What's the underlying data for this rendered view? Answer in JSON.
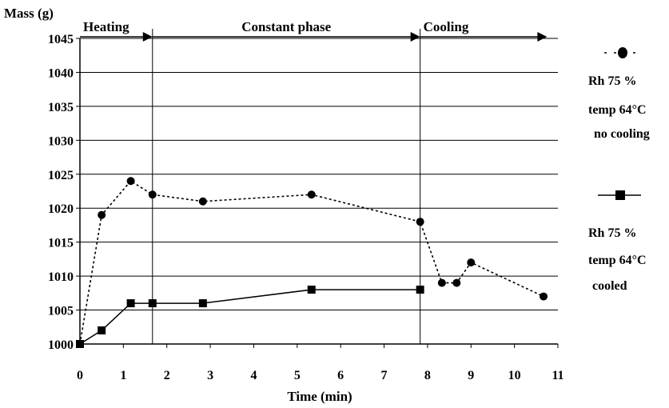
{
  "chart_data": {
    "type": "line",
    "title": "",
    "xlabel": "Time (min)",
    "ylabel": "Mass (g)",
    "xlim": [
      0,
      11
    ],
    "ylim": [
      1000,
      1045
    ],
    "xticks": [
      "0",
      "1",
      "2",
      "3",
      "4",
      "5",
      "6",
      "7",
      "8",
      "9",
      "10",
      "11"
    ],
    "yticks": [
      "1000",
      "1005",
      "1010",
      "1015",
      "1020",
      "1025",
      "1030",
      "1035",
      "1040",
      "1045"
    ],
    "grid": "horizontal",
    "phases": [
      {
        "label": "Heating",
        "start": 0,
        "end": 1.67
      },
      {
        "label": "Constant phase",
        "start": 1.67,
        "end": 7.83
      },
      {
        "label": "Cooling",
        "start": 7.83,
        "end": 10.75
      }
    ],
    "series": [
      {
        "legend_lines": [
          "Rh 75 %",
          "temp 64°C",
          "no cooling"
        ],
        "marker": "circle",
        "line_style": "dotted",
        "x": [
          0,
          0.5,
          1.17,
          1.67,
          2.83,
          5.33,
          7.83,
          8.33,
          8.67,
          9.0,
          10.67
        ],
        "y": [
          1000,
          1019,
          1024,
          1022,
          1021,
          1022,
          1018,
          1009,
          1009,
          1012,
          1007
        ]
      },
      {
        "legend_lines": [
          "Rh 75 %",
          "temp 64°C",
          "cooled"
        ],
        "marker": "square",
        "line_style": "solid",
        "x": [
          0,
          0.5,
          1.17,
          1.67,
          2.83,
          5.33,
          7.83
        ],
        "y": [
          1000,
          1002,
          1006,
          1006,
          1006,
          1008,
          1008
        ]
      }
    ]
  }
}
